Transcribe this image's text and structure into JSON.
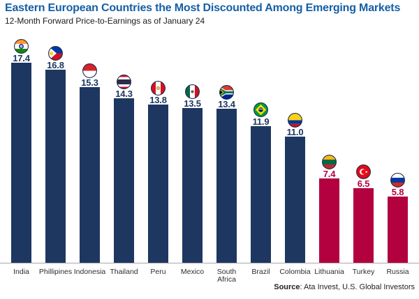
{
  "header": {
    "title": "Eastern European Countries the Most Discounted Among Emerging Markets",
    "subtitle": "12-Month Forward Price-to-Earnings as of January 24"
  },
  "footer": {
    "source_label": "Source",
    "source_rest": ": Ata Invest, U.S. Global Investors"
  },
  "colors": {
    "title_blue": "#155fa5",
    "navy": "#1d3760",
    "crimson": "#b3013f",
    "axis_gray": "#a8a8a8",
    "label_gray": "#2d2d2d"
  },
  "chart_data": {
    "type": "bar",
    "title": "Eastern European Countries the Most Discounted Among Emerging Markets",
    "subtitle": "12-Month Forward Price-to-Earnings as of January 24",
    "categories": [
      "India",
      "Phillipines",
      "Indonesia",
      "Thailand",
      "Peru",
      "Mexico",
      "South Africa",
      "Brazil",
      "Colombia",
      "Lithuania",
      "Turkey",
      "Russia"
    ],
    "values": [
      17.4,
      16.8,
      15.3,
      14.3,
      13.8,
      13.5,
      13.4,
      11.9,
      11.0,
      7.4,
      6.5,
      5.8
    ],
    "color_groups": [
      "navy",
      "navy",
      "navy",
      "navy",
      "navy",
      "navy",
      "navy",
      "navy",
      "navy",
      "crimson",
      "crimson",
      "crimson"
    ],
    "flags": [
      "india",
      "philippines",
      "indonesia",
      "thailand",
      "peru",
      "mexico",
      "south-africa",
      "brazil",
      "colombia",
      "lithuania",
      "turkey",
      "russia"
    ],
    "ylim": [
      0,
      18
    ],
    "grid": false,
    "legend": false,
    "value_labels_shown": true,
    "source": "Ata Invest, U.S. Global Investors"
  }
}
